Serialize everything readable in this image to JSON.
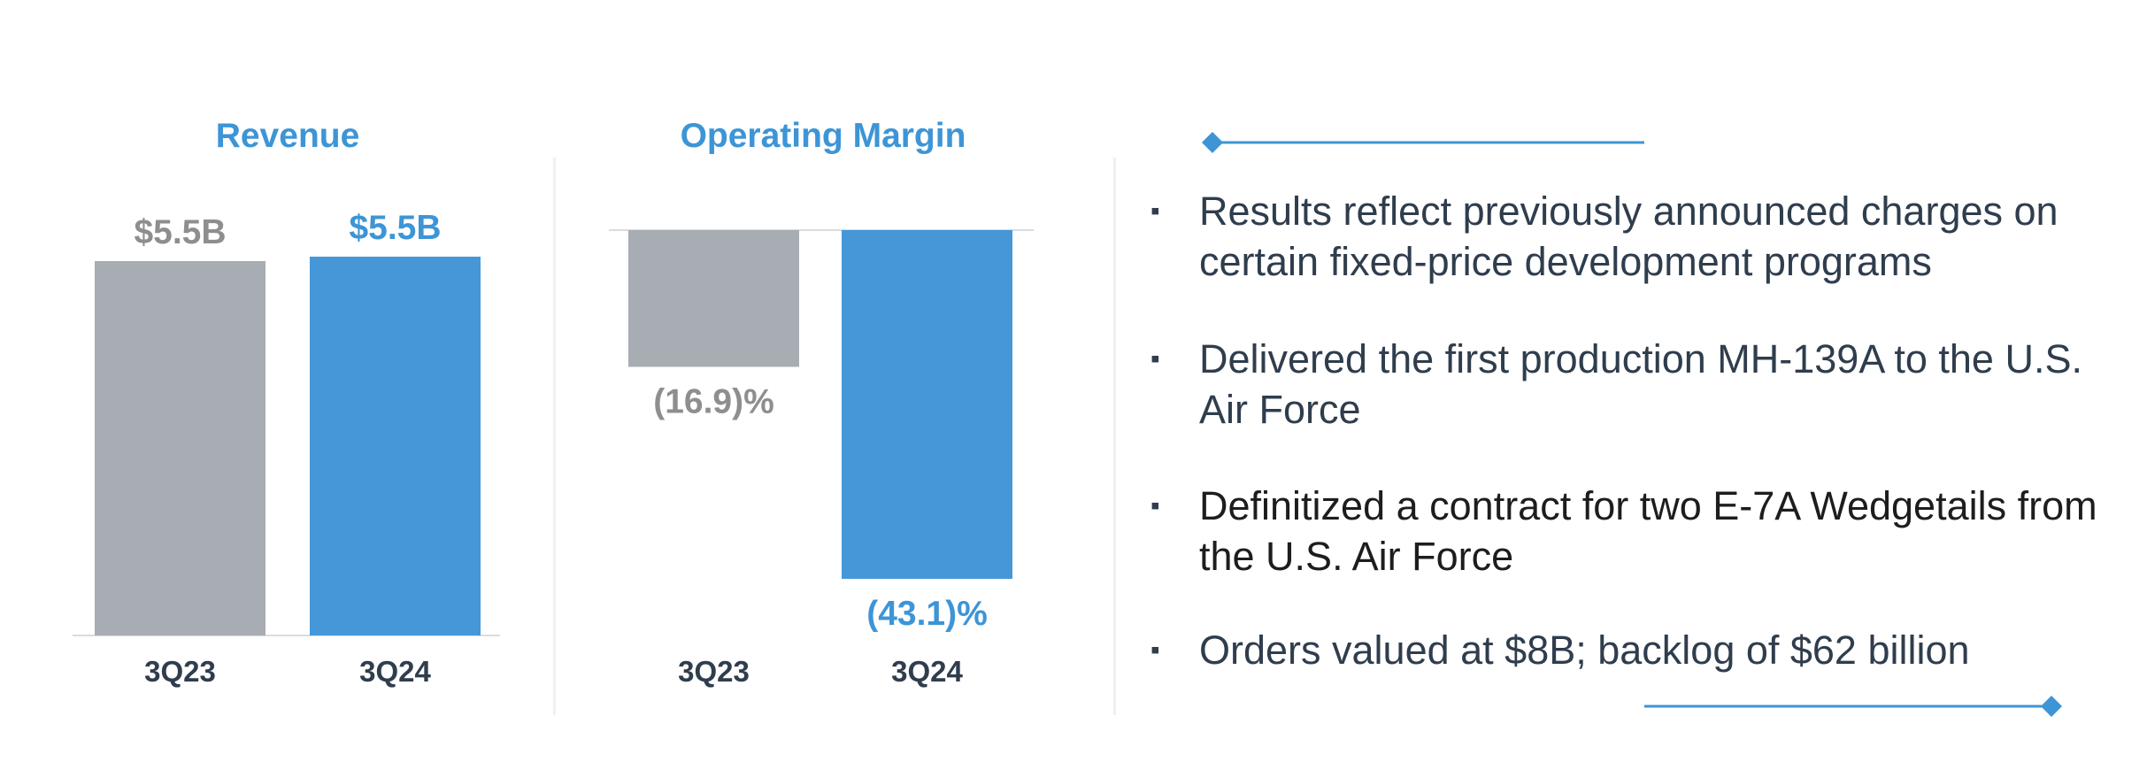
{
  "chart_data": [
    {
      "type": "bar",
      "title": "Revenue",
      "categories": [
        "3Q23",
        "3Q24"
      ],
      "values": [
        5.5,
        5.5
      ],
      "data_labels": [
        "$5.5B",
        "$5.5B"
      ],
      "unit": "B USD",
      "ylim": [
        0,
        5.5
      ],
      "grid": false,
      "colors": [
        "#a7adb3",
        "#4597d8"
      ],
      "label_colors": [
        "#8e8e8e",
        "#3d95d6"
      ]
    },
    {
      "type": "bar",
      "title": "Operating Margin",
      "categories": [
        "3Q23",
        "3Q24"
      ],
      "values": [
        -16.9,
        -43.1
      ],
      "data_labels": [
        "(16.9)%",
        "(43.1)%"
      ],
      "unit": "%",
      "ylim": [
        -43.1,
        0
      ],
      "grid": false,
      "colors": [
        "#a7adb3",
        "#4597d8"
      ],
      "label_colors": [
        "#8e8e8e",
        "#3d95d6"
      ]
    }
  ],
  "bullets": [
    "Results reflect previously announced charges on certain fixed-price development programs",
    "Delivered the first production MH-139A to the U.S. Air Force",
    "Definitized a contract for two E-7A Wedgetails from the U.S. Air Force",
    "Orders valued at $8B; backlog of $62 billion"
  ],
  "bullet_marker": "▪",
  "colors": {
    "accent": "#3d95d6",
    "gray_bar": "#a7adb3",
    "blue_bar": "#4597d8",
    "text": "#2f3d4d"
  }
}
